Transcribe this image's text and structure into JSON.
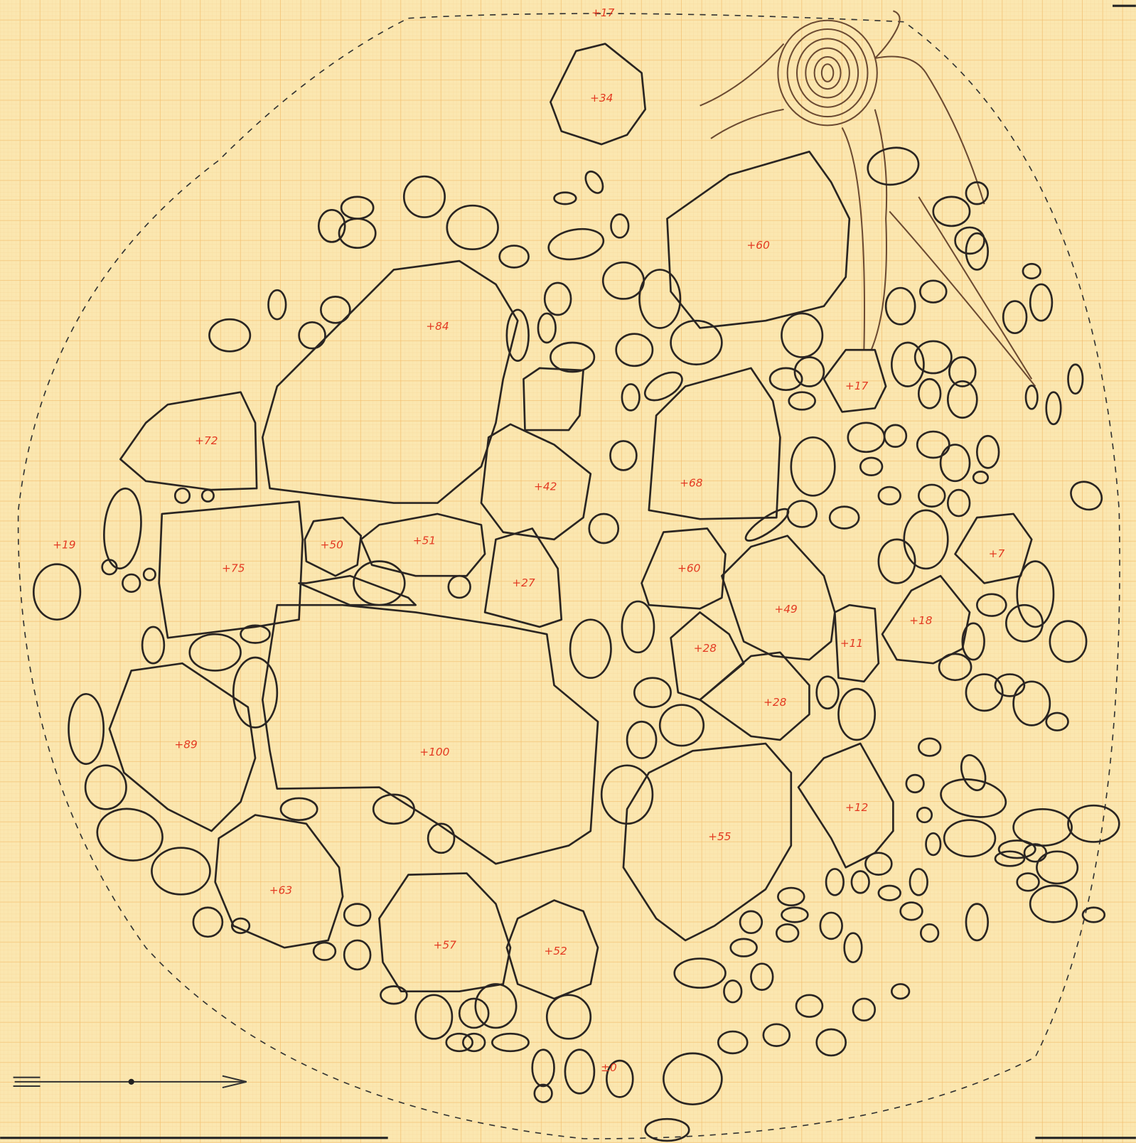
{
  "elevations": [
    "+17",
    "+34",
    "+60",
    "+84",
    "+72",
    "+42",
    "+68",
    "+17",
    "+19",
    "+50",
    "+51",
    "+75",
    "+27",
    "+60",
    "+49",
    "+7",
    "+18",
    "+11",
    "+28",
    "+28",
    "+89",
    "+100",
    "+12",
    "+55",
    "+63",
    "+57",
    "+52",
    "±0"
  ]
}
